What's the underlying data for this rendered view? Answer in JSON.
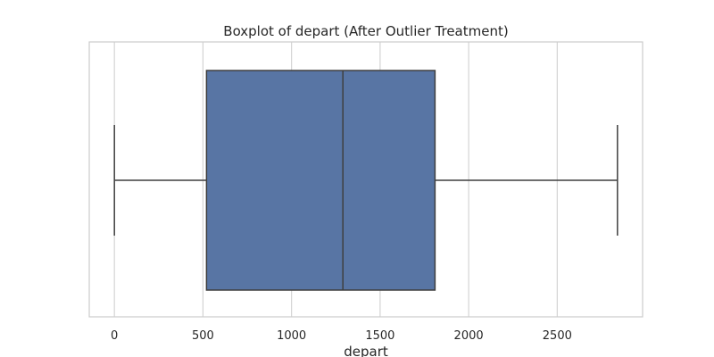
{
  "chart_data": {
    "type": "boxplot",
    "title": "Boxplot of depart (After Outlier Treatment)",
    "xlabel": "depart",
    "ylabel": "",
    "orientation": "horizontal",
    "xlim": [
      -142,
      2982
    ],
    "x_ticks": [
      0,
      500,
      1000,
      1500,
      2000,
      2500
    ],
    "x_tick_labels": [
      "0",
      "500",
      "1000",
      "1500",
      "2000",
      "2500"
    ],
    "grid": true,
    "box": {
      "whisker_low": 0,
      "q1": 520,
      "median": 1290,
      "q3": 1810,
      "whisker_high": 2840
    },
    "colors": {
      "box_fill": "#5875a4",
      "line": "#3f3f3f",
      "grid": "#d4d4d4",
      "frame": "#cccccc",
      "text": "#262626"
    }
  }
}
